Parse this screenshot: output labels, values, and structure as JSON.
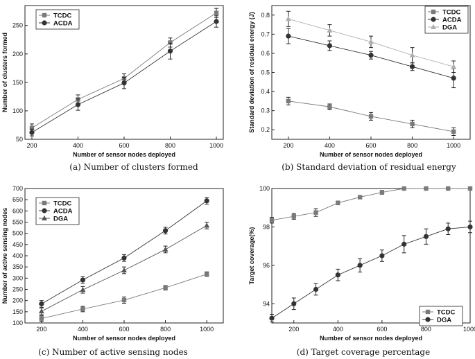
{
  "chart_data": [
    {
      "type": "line",
      "caption": "(a) Number of clusters formed",
      "xlabel": "Number of sensor nodes deployed",
      "ylabel": "Number of clusters formed",
      "xlim": [
        170,
        1030
      ],
      "ylim": [
        50,
        285
      ],
      "x_ticks": [
        "200",
        "400",
        "600",
        "800",
        "1000"
      ],
      "x_tick_values": [
        200,
        400,
        600,
        800,
        1000
      ],
      "y_ticks": [
        "50",
        "100",
        "150",
        "200",
        "250"
      ],
      "y_tick_values": [
        50,
        100,
        150,
        200,
        250
      ],
      "legend_position": "top-left",
      "series": [
        {
          "name": "TCDC",
          "marker": "square",
          "color": "#7a7a7a",
          "x": [
            200,
            400,
            600,
            800,
            1000
          ],
          "values": [
            70,
            120,
            157,
            220,
            272
          ],
          "err": [
            7,
            8,
            8,
            8,
            8
          ]
        },
        {
          "name": "ACDA",
          "marker": "circle",
          "color": "#333333",
          "x": [
            200,
            400,
            600,
            800,
            1000
          ],
          "values": [
            62,
            111,
            149,
            205,
            257
          ],
          "err": [
            6,
            10,
            10,
            14,
            10
          ]
        }
      ]
    },
    {
      "type": "line",
      "caption": "(b) Standard deviation of residual energy",
      "xlabel": "Number of sensor nodes deployed",
      "ylabel": "Standard deviation of residual energy (J)",
      "xlim": [
        120,
        1080
      ],
      "ylim": [
        0.15,
        0.85
      ],
      "x_ticks": [
        "200",
        "400",
        "600",
        "800",
        "1000"
      ],
      "x_tick_values": [
        200,
        400,
        600,
        800,
        1000
      ],
      "y_ticks": [
        "0.2",
        "0.3",
        "0.4",
        "0.5",
        "0.6",
        "0.7",
        "0.8"
      ],
      "y_tick_values": [
        0.2,
        0.3,
        0.4,
        0.5,
        0.6,
        0.7,
        0.8
      ],
      "legend_position": "top-right",
      "series": [
        {
          "name": "TCDC",
          "marker": "square",
          "color": "#7a7a7a",
          "x": [
            200,
            400,
            600,
            800,
            1000
          ],
          "values": [
            0.35,
            0.32,
            0.27,
            0.23,
            0.19
          ],
          "err": [
            0.02,
            0.015,
            0.02,
            0.02,
            0.02
          ]
        },
        {
          "name": "ACDA",
          "marker": "circle",
          "color": "#333333",
          "x": [
            200,
            400,
            600,
            800,
            1000
          ],
          "values": [
            0.69,
            0.64,
            0.59,
            0.53,
            0.47
          ],
          "err": [
            0.04,
            0.025,
            0.02,
            0.02,
            0.05
          ]
        },
        {
          "name": "DGA",
          "marker": "triangle",
          "color": "#b0b0b0",
          "x": [
            200,
            400,
            600,
            800,
            1000
          ],
          "values": [
            0.78,
            0.72,
            0.66,
            0.59,
            0.53
          ],
          "err": [
            0.04,
            0.03,
            0.03,
            0.04,
            0.03
          ]
        }
      ]
    },
    {
      "type": "line",
      "caption": "(c) Number of active sensing nodes",
      "xlabel": "Number of sensor nodes deployed",
      "ylabel": "Number of active sensing nodes",
      "xlim": [
        120,
        1080
      ],
      "ylim": [
        100,
        700
      ],
      "x_ticks": [
        "200",
        "400",
        "600",
        "800",
        "1000"
      ],
      "x_tick_values": [
        200,
        400,
        600,
        800,
        1000
      ],
      "y_ticks": [
        "100",
        "150",
        "200",
        "250",
        "300",
        "350",
        "400",
        "450",
        "500",
        "550",
        "600",
        "650",
        "700"
      ],
      "y_tick_values": [
        100,
        150,
        200,
        250,
        300,
        350,
        400,
        450,
        500,
        550,
        600,
        650,
        700
      ],
      "legend_position": "top-left",
      "series": [
        {
          "name": "TCDC",
          "marker": "square",
          "color": "#7a7a7a",
          "x": [
            200,
            400,
            600,
            800,
            1000
          ],
          "values": [
            120,
            162,
            202,
            257,
            318
          ],
          "err": [
            12,
            12,
            14,
            10,
            10
          ]
        },
        {
          "name": "ACDA",
          "marker": "circle",
          "color": "#333333",
          "x": [
            200,
            400,
            600,
            800,
            1000
          ],
          "values": [
            185,
            292,
            390,
            512,
            645
          ],
          "err": [
            15,
            15,
            15,
            15,
            15
          ]
        },
        {
          "name": "DGA",
          "marker": "triangle",
          "color": "#555555",
          "x": [
            200,
            400,
            600,
            800,
            1000
          ],
          "values": [
            152,
            248,
            335,
            428,
            535
          ],
          "err": [
            15,
            15,
            15,
            15,
            15
          ]
        }
      ]
    },
    {
      "type": "line",
      "caption": "(d) Target coverage percentage",
      "xlabel": "Number of sensor nodes deployed",
      "ylabel": "Target coverage(%)",
      "xlim": [
        100,
        1000
      ],
      "ylim": [
        93,
        100
      ],
      "x_ticks": [
        "200",
        "400",
        "600",
        "800",
        "1000"
      ],
      "x_tick_values": [
        200,
        400,
        600,
        800,
        1000
      ],
      "y_ticks": [
        "94",
        "96",
        "98",
        "100"
      ],
      "y_tick_values": [
        94,
        96,
        98,
        100
      ],
      "legend_position": "bottom-right",
      "series": [
        {
          "name": "TCDC",
          "marker": "square",
          "color": "#7a7a7a",
          "x": [
            100,
            200,
            300,
            400,
            500,
            600,
            700,
            800,
            900,
            1000
          ],
          "values": [
            98.35,
            98.55,
            98.75,
            99.25,
            99.55,
            99.8,
            100,
            100,
            100,
            100
          ],
          "err": [
            0.15,
            0.15,
            0.2,
            0.1,
            0.08,
            0.1,
            0.05,
            0.02,
            0.02,
            0.02
          ]
        },
        {
          "name": "DGA",
          "marker": "circle",
          "color": "#333333",
          "x": [
            100,
            200,
            300,
            400,
            500,
            600,
            700,
            800,
            900,
            1000
          ],
          "values": [
            93.25,
            94.0,
            94.75,
            95.5,
            96.0,
            96.5,
            97.1,
            97.5,
            97.9,
            98.0
          ],
          "err": [
            0.2,
            0.3,
            0.3,
            0.3,
            0.35,
            0.3,
            0.45,
            0.4,
            0.3,
            0.3
          ]
        }
      ]
    }
  ]
}
